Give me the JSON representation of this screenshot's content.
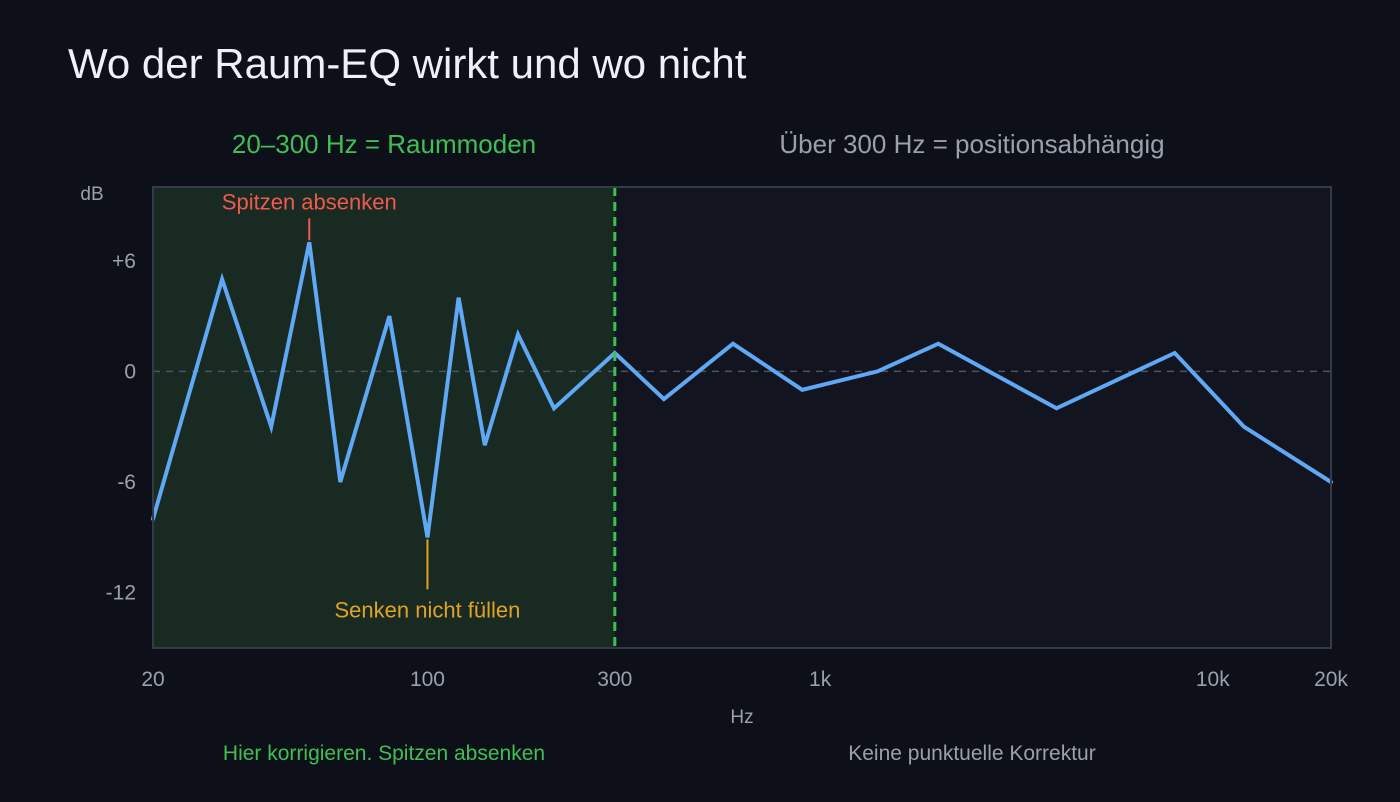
{
  "title": "Wo der Raum-EQ wirkt und wo nicht",
  "zones": {
    "left_label": "20–300 Hz = Raummoden",
    "right_label": "Über 300 Hz = positionsabhängig",
    "left_note": "Hier korrigieren. Spitzen absenken",
    "right_note": "Keine punktuelle Korrektur"
  },
  "colors": {
    "background": "#0d1018",
    "plot_bg": "#12151f",
    "room_zone": "#182a22",
    "curve": "#5ea8f5",
    "boundary": "#3fbf56",
    "peak_marker": "#ef5a4e",
    "dip_marker": "#e0a229"
  },
  "chart_data": {
    "type": "line",
    "xscale": "log",
    "xlim": [
      20,
      20000
    ],
    "ylim": [
      -15,
      10
    ],
    "xlabel": "Hz",
    "ylabel": "dB",
    "xticks": [
      {
        "value": 20,
        "label": "20"
      },
      {
        "value": 100,
        "label": "100"
      },
      {
        "value": 300,
        "label": "300"
      },
      {
        "value": 1000,
        "label": "1k"
      },
      {
        "value": 10000,
        "label": "10k"
      },
      {
        "value": 20000,
        "label": "20k"
      }
    ],
    "yticks": [
      {
        "value": 6,
        "label": "+6"
      },
      {
        "value": 0,
        "label": "0"
      },
      {
        "value": -6,
        "label": "-6"
      },
      {
        "value": -12,
        "label": "-12"
      }
    ],
    "reference_line": 0,
    "boundary_x": 300,
    "shaded_range": [
      20,
      300
    ],
    "series": [
      {
        "x": [
          20,
          30,
          40,
          50,
          60,
          80,
          100,
          120,
          140,
          170,
          210,
          300,
          400,
          600,
          900,
          1400,
          2000,
          4000,
          8000,
          12000,
          20000
        ],
        "y": [
          -8,
          5,
          -3,
          7,
          -6,
          3,
          -9,
          4,
          -4,
          2,
          -2,
          1,
          -1.5,
          1.5,
          -1,
          0,
          1.5,
          -2,
          1,
          -3,
          -6
        ]
      }
    ],
    "annotations": [
      {
        "x": 50,
        "y": 7,
        "text": "Spitzen absenken",
        "kind": "peak"
      },
      {
        "x": 100,
        "y": -9,
        "text": "Senken nicht füllen",
        "kind": "dip"
      }
    ]
  }
}
